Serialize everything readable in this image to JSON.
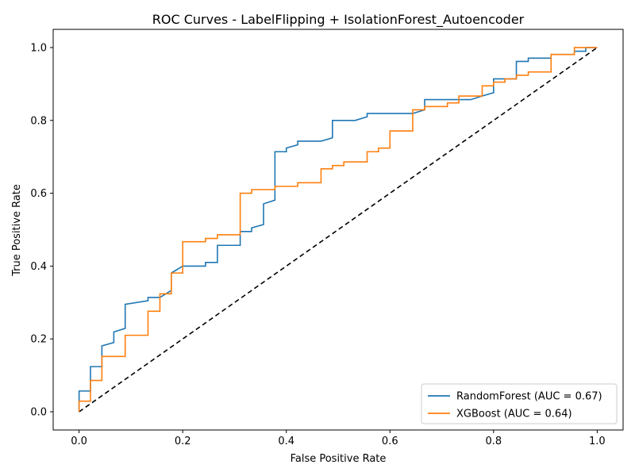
{
  "chart_data": {
    "type": "line",
    "title": "ROC Curves - LabelFlipping + IsolationForest_Autoencoder",
    "xlabel": "False Positive Rate",
    "ylabel": "True Positive Rate",
    "xlim": [
      -0.05,
      1.05
    ],
    "ylim": [
      -0.05,
      1.05
    ],
    "xticks": [
      "0.0",
      "0.2",
      "0.4",
      "0.6",
      "0.8",
      "1.0"
    ],
    "yticks": [
      "0.0",
      "0.2",
      "0.4",
      "0.6",
      "0.8",
      "1.0"
    ],
    "grid": false,
    "legend_position": "lower-right",
    "series": [
      {
        "name": "RandomForest (AUC = 0.67)",
        "color": "#1f77b4",
        "x": [
          0,
          0,
          0.022,
          0.022,
          0.044,
          0.044,
          0.067,
          0.067,
          0.089,
          0.089,
          0.133,
          0.133,
          0.156,
          0.178,
          0.178,
          0.2,
          0.2,
          0.244,
          0.244,
          0.267,
          0.267,
          0.311,
          0.311,
          0.333,
          0.333,
          0.356,
          0.356,
          0.378,
          0.378,
          0.4,
          0.4,
          0.422,
          0.422,
          0.467,
          0.489,
          0.489,
          0.533,
          0.556,
          0.556,
          0.644,
          0.667,
          0.667,
          0.756,
          0.778,
          0.8,
          0.8,
          0.844,
          0.844,
          0.867,
          0.867,
          0.911,
          0.911,
          0.956,
          0.956,
          0.978,
          0.978,
          1.0
        ],
        "y": [
          0,
          0.057,
          0.057,
          0.124,
          0.124,
          0.181,
          0.19,
          0.219,
          0.229,
          0.295,
          0.305,
          0.314,
          0.314,
          0.333,
          0.381,
          0.4,
          0.4,
          0.4,
          0.41,
          0.41,
          0.457,
          0.457,
          0.495,
          0.495,
          0.505,
          0.514,
          0.571,
          0.581,
          0.714,
          0.714,
          0.724,
          0.733,
          0.743,
          0.743,
          0.752,
          0.8,
          0.8,
          0.81,
          0.819,
          0.819,
          0.829,
          0.857,
          0.857,
          0.867,
          0.876,
          0.914,
          0.914,
          0.962,
          0.962,
          0.971,
          0.971,
          0.981,
          0.981,
          0.99,
          0.99,
          1.0,
          1.0
        ]
      },
      {
        "name": "XGBoost (AUC = 0.64)",
        "color": "#ff7f0e",
        "x": [
          0,
          0,
          0.022,
          0.022,
          0.044,
          0.044,
          0.089,
          0.089,
          0.133,
          0.133,
          0.156,
          0.156,
          0.178,
          0.178,
          0.2,
          0.2,
          0.244,
          0.244,
          0.267,
          0.267,
          0.311,
          0.311,
          0.333,
          0.333,
          0.378,
          0.378,
          0.422,
          0.422,
          0.467,
          0.467,
          0.489,
          0.489,
          0.511,
          0.511,
          0.556,
          0.556,
          0.578,
          0.578,
          0.6,
          0.6,
          0.644,
          0.644,
          0.667,
          0.667,
          0.711,
          0.711,
          0.733,
          0.733,
          0.778,
          0.778,
          0.8,
          0.8,
          0.822,
          0.822,
          0.844,
          0.844,
          0.867,
          0.867,
          0.911,
          0.911,
          0.956,
          0.956,
          1.0
        ],
        "y": [
          0,
          0.029,
          0.029,
          0.086,
          0.086,
          0.152,
          0.152,
          0.21,
          0.21,
          0.276,
          0.276,
          0.324,
          0.324,
          0.381,
          0.381,
          0.467,
          0.467,
          0.476,
          0.476,
          0.486,
          0.486,
          0.6,
          0.6,
          0.61,
          0.61,
          0.619,
          0.619,
          0.629,
          0.629,
          0.667,
          0.667,
          0.676,
          0.676,
          0.686,
          0.686,
          0.714,
          0.714,
          0.724,
          0.724,
          0.771,
          0.771,
          0.829,
          0.829,
          0.838,
          0.838,
          0.848,
          0.848,
          0.867,
          0.867,
          0.895,
          0.895,
          0.905,
          0.905,
          0.914,
          0.914,
          0.924,
          0.924,
          0.933,
          0.933,
          0.981,
          0.981,
          1.0,
          1.0
        ]
      }
    ],
    "reference_line": {
      "x": [
        0,
        1
      ],
      "y": [
        0,
        1
      ],
      "color": "#000000",
      "style": "dashed"
    }
  }
}
